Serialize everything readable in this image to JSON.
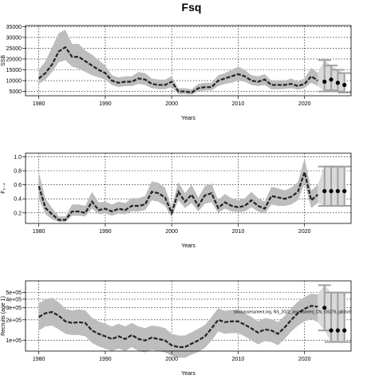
{
  "title": "Fsq",
  "chart_data": [
    {
      "type": "line",
      "ylabel": "SSB",
      "xlabel": "Years",
      "xlim": [
        1978,
        2027
      ],
      "ylim": [
        3000,
        35500
      ],
      "xticks": [
        1980,
        1990,
        2000,
        2010,
        2020
      ],
      "yticks": [
        5000,
        10000,
        15000,
        20000,
        25000,
        30000,
        35000
      ],
      "ytick_labels": [
        "5000",
        "10000",
        "15000",
        "20000",
        "25000",
        "30000",
        "35000"
      ],
      "grid": true,
      "series": [
        {
          "x": [
            1980,
            1981,
            1982,
            1983,
            1984,
            1985,
            1986,
            1987,
            1988,
            1989,
            1990,
            1991,
            1992,
            1993,
            1994,
            1995,
            1996,
            1997,
            1998,
            1999,
            2000,
            2001,
            2002,
            2003,
            2004,
            2005,
            2006,
            2007,
            2008,
            2009,
            2010,
            2011,
            2012,
            2013,
            2014,
            2015,
            2016,
            2017,
            2018,
            2019,
            2020,
            2021,
            2022
          ],
          "median": [
            11000,
            13500,
            17500,
            23500,
            25500,
            21000,
            21000,
            19000,
            17000,
            15000,
            13500,
            10000,
            9000,
            9500,
            9500,
            11000,
            10500,
            8500,
            8000,
            8000,
            9500,
            5000,
            5000,
            4500,
            6500,
            7000,
            7000,
            10000,
            11000,
            12000,
            13000,
            12000,
            10000,
            9500,
            10500,
            8000,
            8000,
            8000,
            8500,
            7500,
            8500,
            12000,
            10000
          ],
          "lower": [
            8500,
            10500,
            14000,
            18500,
            19500,
            16500,
            15500,
            14000,
            12500,
            11500,
            10500,
            8000,
            7000,
            7500,
            7500,
            8500,
            8000,
            6500,
            6000,
            6000,
            7000,
            3800,
            3800,
            3500,
            5000,
            5500,
            5500,
            7500,
            8500,
            9000,
            10000,
            9500,
            8000,
            7500,
            8000,
            6000,
            6000,
            6200,
            6500,
            5800,
            6500,
            9000,
            7500
          ],
          "upper": [
            15000,
            19000,
            25500,
            32000,
            33500,
            27000,
            27000,
            24000,
            22000,
            19500,
            17000,
            12500,
            11500,
            12000,
            12000,
            14000,
            13500,
            11000,
            10500,
            10500,
            12000,
            6500,
            6500,
            6000,
            8500,
            9000,
            9000,
            12500,
            13500,
            15000,
            16500,
            15000,
            12500,
            12000,
            13000,
            10000,
            10000,
            10000,
            11000,
            9500,
            11000,
            16000,
            13500
          ]
        }
      ],
      "projection": {
        "x": [
          2023,
          2024,
          2025,
          2026
        ],
        "median": [
          9500,
          10500,
          9000,
          8000
        ],
        "lower": [
          5000,
          5500,
          5000,
          4500
        ],
        "upper": [
          19500,
          17000,
          15000,
          13500
        ]
      }
    },
    {
      "type": "line",
      "ylabel": "F₂₋₄",
      "xlabel": "Years",
      "xlim": [
        1978,
        2027
      ],
      "ylim": [
        0.05,
        1.05
      ],
      "xticks": [
        1980,
        1990,
        2000,
        2010,
        2020
      ],
      "yticks": [
        0.2,
        0.4,
        0.6,
        0.8,
        1.0
      ],
      "ytick_labels": [
        "0.2",
        "0.4",
        "0.6",
        "0.8",
        "1.0"
      ],
      "grid": true,
      "series": [
        {
          "x": [
            1980,
            1981,
            1982,
            1983,
            1984,
            1985,
            1986,
            1987,
            1988,
            1989,
            1990,
            1991,
            1992,
            1993,
            1994,
            1995,
            1996,
            1997,
            1998,
            1999,
            2000,
            2001,
            2002,
            2003,
            2004,
            2005,
            2006,
            2007,
            2008,
            2009,
            2010,
            2011,
            2012,
            2013,
            2014,
            2015,
            2016,
            2017,
            2018,
            2019,
            2020,
            2021,
            2022
          ],
          "median": [
            0.58,
            0.27,
            0.18,
            0.1,
            0.1,
            0.22,
            0.22,
            0.2,
            0.36,
            0.24,
            0.26,
            0.22,
            0.26,
            0.24,
            0.3,
            0.3,
            0.32,
            0.5,
            0.48,
            0.42,
            0.2,
            0.5,
            0.36,
            0.46,
            0.3,
            0.45,
            0.48,
            0.27,
            0.35,
            0.3,
            0.28,
            0.3,
            0.38,
            0.3,
            0.26,
            0.44,
            0.42,
            0.4,
            0.43,
            0.5,
            0.78,
            0.38,
            0.46
          ],
          "lower": [
            0.4,
            0.18,
            0.11,
            0.07,
            0.07,
            0.16,
            0.16,
            0.15,
            0.26,
            0.18,
            0.19,
            0.16,
            0.19,
            0.18,
            0.22,
            0.22,
            0.24,
            0.38,
            0.36,
            0.3,
            0.14,
            0.38,
            0.27,
            0.34,
            0.22,
            0.33,
            0.35,
            0.2,
            0.26,
            0.22,
            0.21,
            0.22,
            0.28,
            0.22,
            0.19,
            0.32,
            0.3,
            0.3,
            0.32,
            0.38,
            0.62,
            0.27,
            0.34
          ],
          "upper": [
            0.78,
            0.4,
            0.27,
            0.15,
            0.15,
            0.32,
            0.32,
            0.3,
            0.5,
            0.35,
            0.36,
            0.32,
            0.36,
            0.34,
            0.41,
            0.41,
            0.44,
            0.65,
            0.63,
            0.56,
            0.28,
            0.64,
            0.48,
            0.6,
            0.42,
            0.58,
            0.62,
            0.38,
            0.47,
            0.41,
            0.38,
            0.41,
            0.5,
            0.41,
            0.36,
            0.57,
            0.55,
            0.52,
            0.56,
            0.64,
            0.98,
            0.52,
            0.6
          ]
        }
      ],
      "projection": {
        "x": [
          2023,
          2024,
          2025,
          2026
        ],
        "median": [
          0.51,
          0.51,
          0.51,
          0.51
        ],
        "lower": [
          0.3,
          0.3,
          0.3,
          0.3
        ],
        "upper": [
          0.86,
          0.86,
          0.86,
          0.86
        ]
      }
    },
    {
      "type": "line",
      "ylabel": "Recruits (age 1)",
      "xlabel": "Years",
      "xlim": [
        1978,
        2027
      ],
      "ylim": [
        70000,
        740000
      ],
      "log_y": true,
      "xticks": [
        1980,
        1990,
        2000,
        2010,
        2020
      ],
      "yticks": [
        100000,
        200000,
        300000,
        400000,
        500000
      ],
      "ytick_labels": [
        "1e+05",
        "2e+05",
        "3e+05",
        "4e+05",
        "5e+05"
      ],
      "grid": true,
      "annotation": "stockassessment.org, NS_2022_assessment_CN, r16276, gitcbc6",
      "series": [
        {
          "x": [
            1980,
            1981,
            1982,
            1983,
            1984,
            1985,
            1986,
            1987,
            1988,
            1989,
            1990,
            1991,
            1992,
            1993,
            1994,
            1995,
            1996,
            1997,
            1998,
            1999,
            2000,
            2001,
            2002,
            2003,
            2004,
            2005,
            2006,
            2007,
            2008,
            2009,
            2010,
            2011,
            2012,
            2013,
            2014,
            2015,
            2016,
            2017,
            2018,
            2019,
            2020,
            2021,
            2022
          ],
          "median": [
            220000,
            250000,
            260000,
            230000,
            190000,
            180000,
            185000,
            180000,
            140000,
            125000,
            115000,
            105000,
            115000,
            105000,
            120000,
            105000,
            100000,
            110000,
            105000,
            100000,
            85000,
            80000,
            80000,
            90000,
            100000,
            115000,
            150000,
            200000,
            185000,
            190000,
            190000,
            170000,
            150000,
            130000,
            145000,
            140000,
            125000,
            155000,
            200000,
            250000,
            290000,
            320000,
            310000
          ],
          "lower": [
            140000,
            160000,
            165000,
            145000,
            125000,
            120000,
            120000,
            115000,
            92000,
            82000,
            76000,
            70000,
            76000,
            70000,
            80000,
            70000,
            67000,
            73000,
            70000,
            67000,
            60000,
            56000,
            56000,
            62000,
            68000,
            78000,
            100000,
            135000,
            125000,
            128000,
            128000,
            115000,
            100000,
            88000,
            98000,
            95000,
            85000,
            105000,
            135000,
            165000,
            190000,
            205000,
            185000
          ],
          "upper": [
            350000,
            400000,
            420000,
            360000,
            290000,
            275000,
            285000,
            275000,
            215000,
            190000,
            175000,
            160000,
            175000,
            160000,
            180000,
            160000,
            152000,
            165000,
            160000,
            152000,
            125000,
            118000,
            118000,
            132000,
            148000,
            168000,
            220000,
            295000,
            270000,
            280000,
            280000,
            250000,
            220000,
            190000,
            212000,
            205000,
            185000,
            228000,
            295000,
            370000,
            430000,
            480000,
            470000
          ]
        }
      ],
      "projection": {
        "x": [
          2023,
          2024,
          2025,
          2026
        ],
        "median": [
          300000,
          140000,
          140000,
          140000
        ],
        "lower": [
          140000,
          95000,
          95000,
          95000
        ],
        "upper": [
          640000,
          500000,
          500000,
          500000
        ]
      }
    }
  ]
}
